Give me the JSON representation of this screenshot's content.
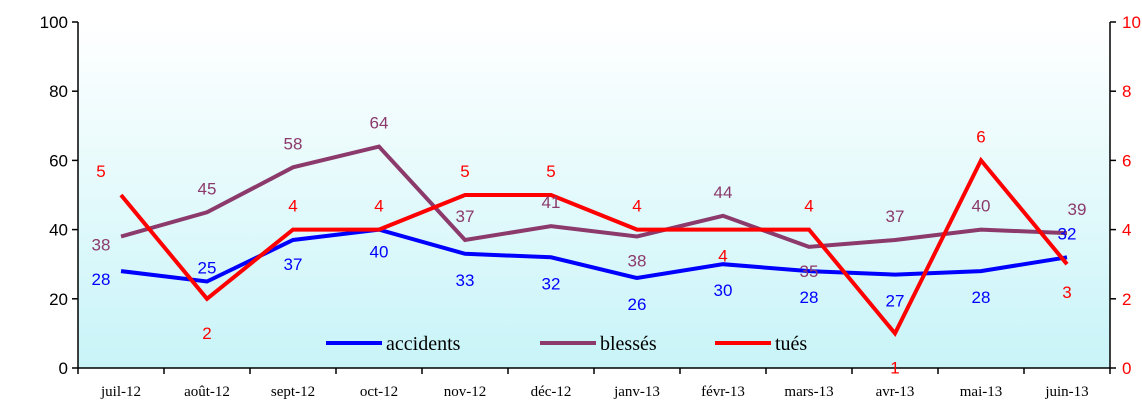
{
  "chart_data": {
    "type": "line",
    "categories": [
      "juil-12",
      "août-12",
      "sept-12",
      "oct-12",
      "nov-12",
      "déc-12",
      "janv-13",
      "févr-13",
      "mars-13",
      "avr-13",
      "mai-13",
      "juin-13"
    ],
    "y_left": {
      "range": [
        0,
        100
      ],
      "ticks": [
        "0",
        "20",
        "40",
        "60",
        "80",
        "100"
      ]
    },
    "y_right": {
      "range": [
        0,
        10
      ],
      "ticks": [
        "0",
        "2",
        "4",
        "6",
        "8",
        "10"
      ]
    },
    "series": [
      {
        "name": "accidents",
        "axis": "left",
        "color": "#0000ff",
        "values": [
          28,
          25,
          37,
          40,
          33,
          32,
          26,
          30,
          28,
          27,
          28,
          32
        ]
      },
      {
        "name": "blessés",
        "axis": "left",
        "color": "#8b3a6b",
        "values": [
          38,
          45,
          58,
          64,
          37,
          41,
          38,
          44,
          35,
          37,
          40,
          39
        ]
      },
      {
        "name": "tués",
        "axis": "right",
        "color": "#ff0000",
        "values": [
          5,
          2,
          4,
          4,
          5,
          5,
          4,
          4,
          4,
          1,
          6,
          3
        ]
      }
    ],
    "legend_position": "bottom-center",
    "background": "gradient white to light cyan"
  }
}
